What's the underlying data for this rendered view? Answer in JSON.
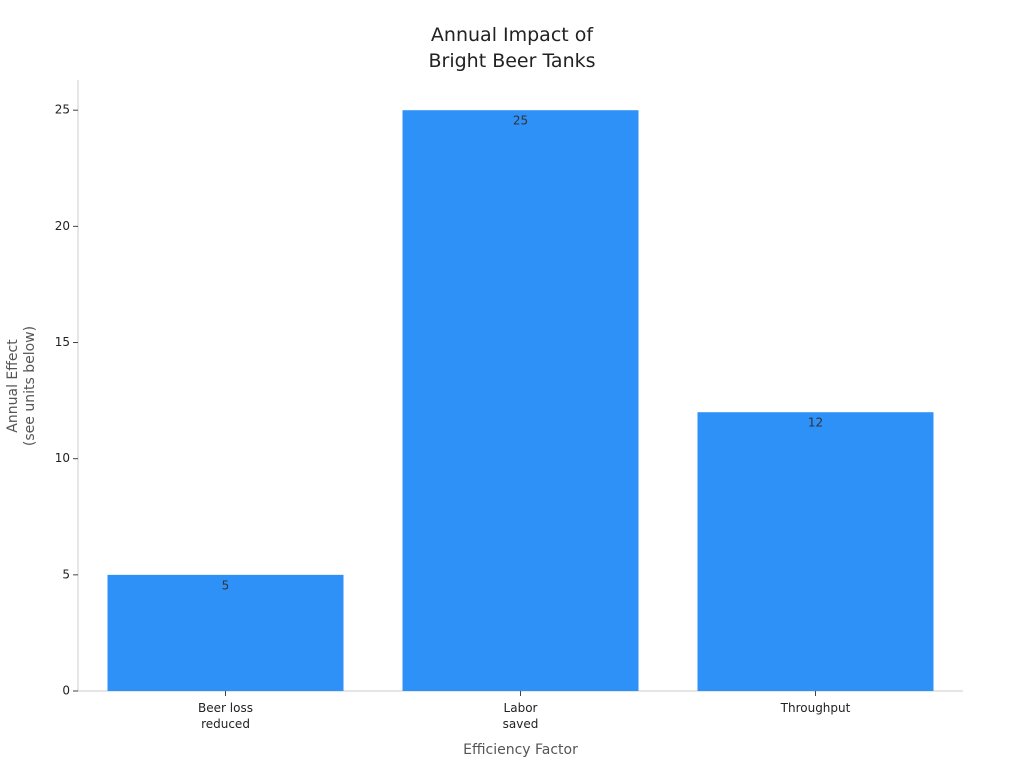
{
  "chart_data": {
    "type": "bar",
    "title": "Annual Impact of\nBright Beer Tanks",
    "x_label": "Efficiency Factor",
    "y_label": "Annual Effect\n(see units below)",
    "categories": [
      "Beer loss\nreduced",
      "Labor\nsaved",
      "Throughput"
    ],
    "values": [
      5,
      25,
      12
    ],
    "color": "#2e91f8",
    "ylim": [
      0,
      26.3
    ],
    "yticks": [
      0,
      5,
      10,
      15,
      20,
      25
    ],
    "grid": false
  }
}
